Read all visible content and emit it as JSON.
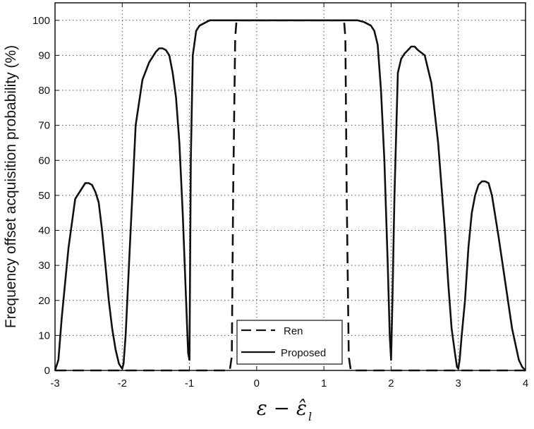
{
  "chart_data": {
    "type": "line",
    "title": "",
    "xlabel": {
      "main": "ε − ε̂",
      "subscript": "l"
    },
    "ylabel": "Frequency offset acquisition probability (%)",
    "xlim": [
      -3,
      4
    ],
    "ylim": [
      0,
      105
    ],
    "grid": true,
    "legend_position": "bottom-center",
    "x_ticks": [
      -3,
      -2,
      -1,
      0,
      1,
      2,
      3,
      4
    ],
    "y_ticks": [
      0,
      10,
      20,
      30,
      40,
      50,
      60,
      70,
      80,
      90,
      100
    ],
    "series": [
      {
        "name": "Ren",
        "style": "dashed",
        "color": "#111111",
        "x": [
          -3,
          -0.4,
          -0.37,
          -0.35,
          -0.32,
          -0.3,
          1.3,
          1.32,
          1.34,
          1.37,
          1.4,
          4
        ],
        "y": [
          0,
          0,
          4,
          50,
          95,
          100,
          100,
          95,
          50,
          4,
          0,
          0
        ]
      },
      {
        "name": "Proposed",
        "style": "solid",
        "color": "#111111",
        "x": [
          -3,
          -2.95,
          -2.9,
          -2.8,
          -2.7,
          -2.6,
          -2.55,
          -2.5,
          -2.45,
          -2.4,
          -2.35,
          -2.3,
          -2.25,
          -2.2,
          -2.15,
          -2.1,
          -2.05,
          -2.02,
          -2.0,
          -1.98,
          -1.95,
          -1.9,
          -1.85,
          -1.8,
          -1.7,
          -1.6,
          -1.5,
          -1.45,
          -1.4,
          -1.35,
          -1.3,
          -1.25,
          -1.2,
          -1.15,
          -1.1,
          -1.05,
          -1.02,
          -1.0,
          -0.98,
          -0.95,
          -0.9,
          -0.85,
          -0.8,
          -0.7,
          -0.6,
          -0.5,
          0,
          1,
          1.5,
          1.6,
          1.7,
          1.75,
          1.8,
          1.85,
          1.9,
          1.95,
          1.98,
          2.0,
          2.02,
          2.05,
          2.1,
          2.15,
          2.2,
          2.25,
          2.3,
          2.35,
          2.4,
          2.5,
          2.6,
          2.7,
          2.8,
          2.85,
          2.9,
          2.95,
          2.98,
          3.0,
          3.02,
          3.05,
          3.1,
          3.15,
          3.2,
          3.25,
          3.3,
          3.35,
          3.4,
          3.45,
          3.5,
          3.6,
          3.7,
          3.8,
          3.9,
          3.95,
          4.0
        ],
        "y": [
          0,
          3,
          15,
          35,
          49,
          52,
          53.5,
          53.5,
          53,
          51,
          48,
          40,
          30,
          20,
          12,
          6,
          2,
          1,
          0.5,
          2,
          10,
          30,
          50,
          70,
          83,
          88,
          91,
          92,
          92,
          91.5,
          90,
          85,
          78,
          65,
          45,
          20,
          5,
          3,
          60,
          90,
          97,
          98.5,
          99,
          100,
          100,
          100,
          100,
          100,
          100,
          99.5,
          98.5,
          97,
          93,
          80,
          60,
          30,
          10,
          3,
          20,
          50,
          85,
          89,
          90.5,
          91.5,
          92.5,
          92.5,
          91.5,
          90,
          82,
          65,
          40,
          25,
          12,
          5,
          1,
          0.5,
          3,
          10,
          20,
          35,
          45,
          50,
          53,
          54,
          54,
          53.5,
          50,
          38,
          25,
          12,
          3,
          1,
          0
        ]
      }
    ]
  }
}
